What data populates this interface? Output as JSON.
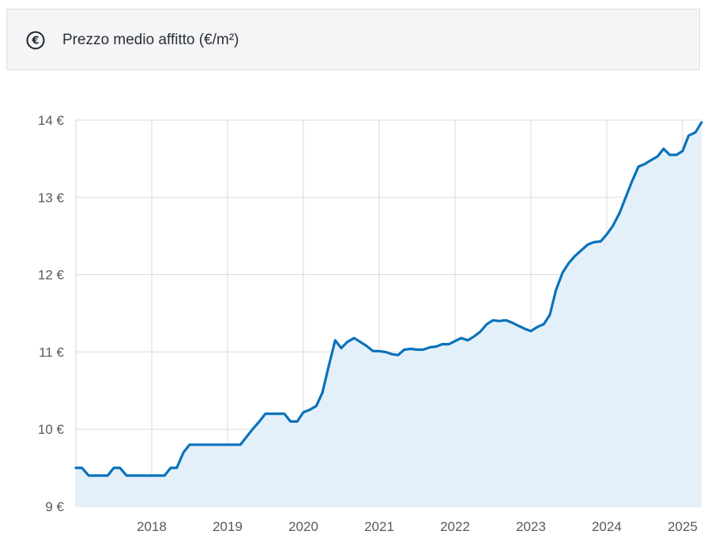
{
  "header": {
    "title": "Prezzo medio affitto (€/m²)",
    "icon": "euro-circle-icon",
    "icon_glyph": "€"
  },
  "colors": {
    "line": "#0a72bc",
    "area": "#e4f0f9",
    "grid": "#d8dadd",
    "tick_text": "#555a60",
    "header_bg": "#f4f5f6"
  },
  "chart_data": {
    "type": "area",
    "title": "Prezzo medio affitto (€/m²)",
    "xlabel": "",
    "ylabel": "",
    "ylim": [
      9,
      14
    ],
    "xlim": [
      2017.0,
      2025.25
    ],
    "y_ticks": [
      "9 €",
      "10 €",
      "11 €",
      "12 €",
      "13 €",
      "14 €"
    ],
    "y_tick_values": [
      9,
      10,
      11,
      12,
      13,
      14
    ],
    "x_ticks": [
      "2018",
      "2019",
      "2020",
      "2021",
      "2022",
      "2023",
      "2024",
      "2025"
    ],
    "x_tick_values": [
      2018,
      2019,
      2020,
      2021,
      2022,
      2023,
      2024,
      2025
    ],
    "grid": true,
    "series": [
      {
        "x": [
          2017.0,
          2017.08,
          2017.17,
          2017.25,
          2017.33,
          2017.42,
          2017.5,
          2017.58,
          2017.67,
          2017.75,
          2017.83,
          2017.92,
          2018.0,
          2018.08,
          2018.17,
          2018.25,
          2018.33,
          2018.42,
          2018.5,
          2018.58,
          2018.67,
          2018.75,
          2018.83,
          2018.92,
          2019.0,
          2019.08,
          2019.17,
          2019.25,
          2019.33,
          2019.42,
          2019.5,
          2019.58,
          2019.67,
          2019.75,
          2019.83,
          2019.92,
          2020.0,
          2020.08,
          2020.17,
          2020.25,
          2020.33,
          2020.42,
          2020.5,
          2020.58,
          2020.67,
          2020.75,
          2020.83,
          2020.92,
          2021.0,
          2021.08,
          2021.17,
          2021.25,
          2021.33,
          2021.42,
          2021.5,
          2021.58,
          2021.67,
          2021.75,
          2021.83,
          2021.92,
          2022.0,
          2022.08,
          2022.17,
          2022.25,
          2022.33,
          2022.42,
          2022.5,
          2022.58,
          2022.67,
          2022.75,
          2022.83,
          2022.92,
          2023.0,
          2023.08,
          2023.17,
          2023.25,
          2023.33,
          2023.42,
          2023.5,
          2023.58,
          2023.67,
          2023.75,
          2023.83,
          2023.92,
          2024.0,
          2024.08,
          2024.17,
          2024.25,
          2024.33,
          2024.42,
          2024.5,
          2024.58,
          2024.67,
          2024.75,
          2024.83,
          2024.92,
          2025.0,
          2025.08,
          2025.17,
          2025.25
        ],
        "y": [
          9.5,
          9.5,
          9.4,
          9.4,
          9.4,
          9.4,
          9.5,
          9.5,
          9.4,
          9.4,
          9.4,
          9.4,
          9.4,
          9.4,
          9.4,
          9.5,
          9.5,
          9.7,
          9.8,
          9.8,
          9.8,
          9.8,
          9.8,
          9.8,
          9.8,
          9.8,
          9.8,
          9.9,
          10.0,
          10.1,
          10.2,
          10.2,
          10.2,
          10.2,
          10.1,
          10.1,
          10.22,
          10.25,
          10.3,
          10.47,
          10.8,
          11.15,
          11.05,
          11.13,
          11.18,
          11.13,
          11.08,
          11.01,
          11.01,
          11.0,
          10.97,
          10.96,
          11.03,
          11.04,
          11.03,
          11.03,
          11.06,
          11.07,
          11.1,
          11.1,
          11.14,
          11.18,
          11.15,
          11.2,
          11.26,
          11.36,
          11.41,
          11.4,
          11.41,
          11.38,
          11.34,
          11.3,
          11.27,
          11.32,
          11.36,
          11.48,
          11.8,
          12.03,
          12.15,
          12.24,
          12.32,
          12.39,
          12.42,
          12.43,
          12.52,
          12.63,
          12.8,
          13.0,
          13.2,
          13.4,
          13.43,
          13.48,
          13.53,
          13.63,
          13.55,
          13.55,
          13.6,
          13.8,
          13.84,
          13.97
        ]
      }
    ]
  }
}
